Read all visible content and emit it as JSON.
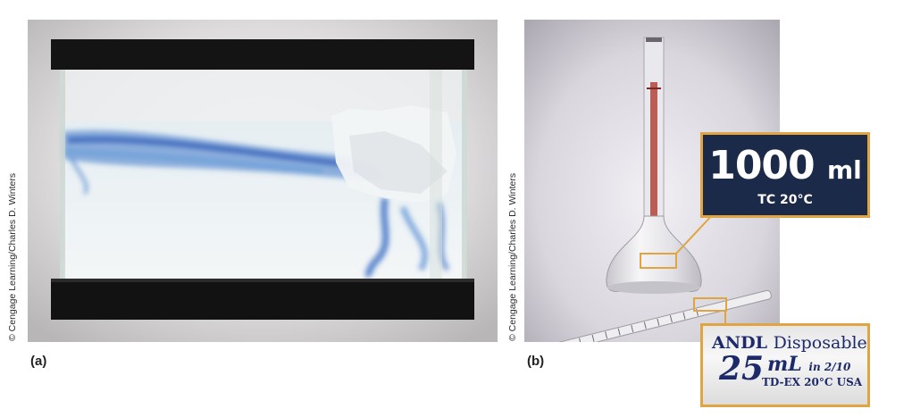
{
  "panel_a": {
    "label": "(a)",
    "credit": "© Cengage Learning/Charles D. Winters"
  },
  "panel_b": {
    "label": "(b)",
    "credit": "© Cengage Learning/Charles D. Winters",
    "flask_callout": {
      "volume": "1000",
      "unit": "ml",
      "calibration": "TC 20°C"
    },
    "pipette_callout": {
      "brand_fragment": "ANDL",
      "type": "Disposable",
      "volume": "25",
      "unit": "mL",
      "graduation": "in 2/10",
      "spec": "TD-EX 20°C USA"
    }
  }
}
